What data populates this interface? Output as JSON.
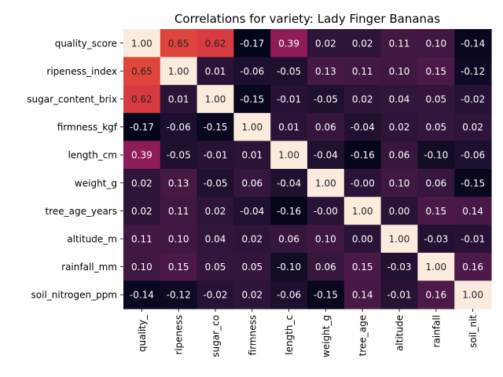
{
  "chart_data": {
    "type": "heatmap",
    "title": "Correlations for variety: Lady Finger Bananas",
    "row_labels": [
      "quality_score",
      "ripeness_index",
      "sugar_content_brix",
      "firmness_kgf",
      "length_cm",
      "weight_g",
      "tree_age_years",
      "altitude_m",
      "rainfall_mm",
      "soil_nitrogen_ppm"
    ],
    "col_labels": [
      "quality_",
      "ripeness",
      "sugar_co",
      "firmness",
      "length_c",
      "weight_g",
      "tree_age",
      "altitude",
      "rainfall",
      "soil_nit"
    ],
    "values": [
      [
        "1.00",
        "0.65",
        "0.62",
        "-0.17",
        "0.39",
        "0.02",
        "0.02",
        "0.11",
        "0.10",
        "-0.14"
      ],
      [
        "0.65",
        "1.00",
        "0.01",
        "-0.06",
        "-0.05",
        "0.13",
        "0.11",
        "0.10",
        "0.15",
        "-0.12"
      ],
      [
        "0.62",
        "0.01",
        "1.00",
        "-0.15",
        "-0.01",
        "-0.05",
        "0.02",
        "0.04",
        "0.05",
        "-0.02"
      ],
      [
        "-0.17",
        "-0.06",
        "-0.15",
        "1.00",
        "0.01",
        "0.06",
        "-0.04",
        "0.02",
        "0.05",
        "0.02"
      ],
      [
        "0.39",
        "-0.05",
        "-0.01",
        "0.01",
        "1.00",
        "-0.04",
        "-0.16",
        "0.06",
        "-0.10",
        "-0.06"
      ],
      [
        "0.02",
        "0.13",
        "-0.05",
        "0.06",
        "-0.04",
        "1.00",
        "-0.00",
        "0.10",
        "0.06",
        "-0.15"
      ],
      [
        "0.02",
        "0.11",
        "0.02",
        "-0.04",
        "-0.16",
        "-0.00",
        "1.00",
        "0.00",
        "0.15",
        "0.14"
      ],
      [
        "0.11",
        "0.10",
        "0.04",
        "0.02",
        "0.06",
        "0.10",
        "0.00",
        "1.00",
        "-0.03",
        "-0.01"
      ],
      [
        "0.10",
        "0.15",
        "0.05",
        "0.05",
        "-0.10",
        "0.06",
        "0.15",
        "-0.03",
        "1.00",
        "0.16"
      ],
      [
        "-0.14",
        "-0.12",
        "-0.02",
        "0.02",
        "-0.06",
        "-0.15",
        "0.14",
        "-0.01",
        "0.16",
        "1.00"
      ]
    ],
    "colormap": "rocket",
    "value_range": [
      -0.17,
      1.0
    ],
    "annotations": true,
    "colorbar": false
  }
}
